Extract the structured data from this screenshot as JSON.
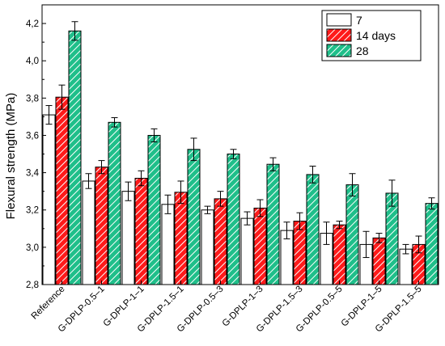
{
  "chart_data": {
    "type": "bar",
    "ylabel": "Flexural strength (MPa)",
    "xlabel": "",
    "ylim": [
      2.8,
      4.3
    ],
    "yticks": [
      "2,8",
      "3,0",
      "3,2",
      "3,4",
      "3,6",
      "3,8",
      "4,0",
      "4,2"
    ],
    "categories": [
      "Reference",
      "G-DPLP-0.5–1",
      "G-DPLP-1–1",
      "G-DPLP-1.5–1",
      "G-DPLP-0.5–3",
      "G-DPLP-1–3",
      "G-DPLP-1.5–3",
      "G-DPLP-0.5–5",
      "G-DPLP-1–5",
      "G-DPLP-1.5–5"
    ],
    "series": [
      {
        "name": "7",
        "fill": "#ffffff",
        "hatch": "none",
        "values": [
          3.71,
          3.355,
          3.3,
          3.23,
          3.2,
          3.155,
          3.09,
          3.075,
          3.015,
          2.99
        ],
        "errors": [
          0.05,
          0.04,
          0.05,
          0.05,
          0.02,
          0.035,
          0.045,
          0.06,
          0.07,
          0.025
        ]
      },
      {
        "name": "14 days",
        "fill": "#ff1a1a",
        "hatch": "#ffffff",
        "values": [
          3.805,
          3.43,
          3.37,
          3.295,
          3.26,
          3.21,
          3.14,
          3.12,
          3.05,
          3.015
        ],
        "errors": [
          0.065,
          0.035,
          0.04,
          0.06,
          0.04,
          0.045,
          0.045,
          0.02,
          0.025,
          0.045
        ]
      },
      {
        "name": "28",
        "fill": "#1fbf8a",
        "hatch": "#ffffff",
        "values": [
          4.16,
          3.67,
          3.6,
          3.525,
          3.5,
          3.445,
          3.39,
          3.335,
          3.29,
          3.235
        ],
        "errors": [
          0.05,
          0.025,
          0.035,
          0.06,
          0.025,
          0.035,
          0.045,
          0.06,
          0.07,
          0.03
        ]
      }
    ],
    "grid": false,
    "legend_position": "top-right"
  }
}
